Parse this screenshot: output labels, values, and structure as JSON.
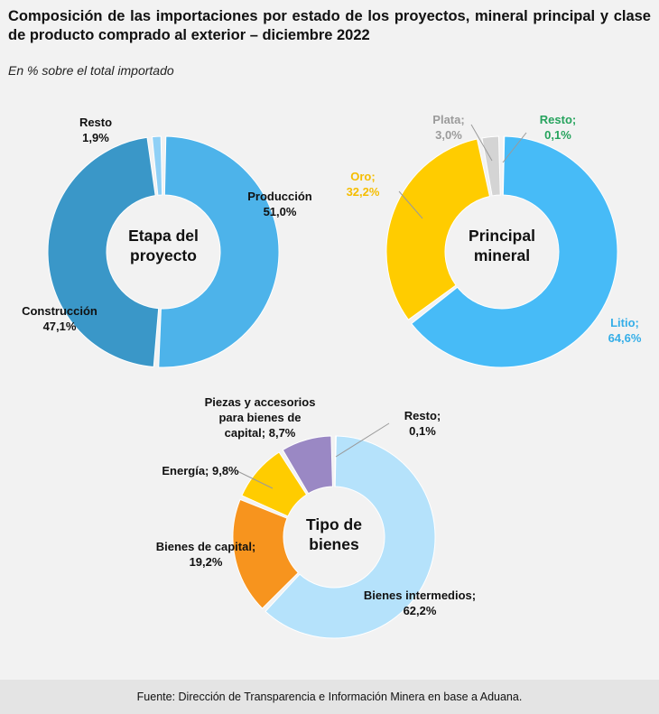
{
  "title": "Composición de las importaciones por estado de los proyectos, mineral principal y clase de producto comprado al exterior – diciembre 2022",
  "subtitle": "En % sobre el total importado",
  "footer": "Fuente: Dirección de Transparencia e Información Minera en base a Aduana.",
  "chart_data": [
    {
      "type": "pie",
      "center_label": [
        "Etapa del",
        "proyecto"
      ],
      "categories": [
        "Producción",
        "Construcción",
        "Resto"
      ],
      "values": [
        51.0,
        47.1,
        1.9
      ],
      "value_labels": [
        "51,0%",
        "47,1%",
        "1,9%"
      ],
      "colors": [
        "#4db3ea",
        "#3a97c8",
        "#8fd0f6"
      ],
      "label_colors": [
        "#111111",
        "#111111",
        "#111111"
      ]
    },
    {
      "type": "pie",
      "center_label": [
        "Principal",
        "mineral"
      ],
      "categories": [
        "Litio;",
        "Oro;",
        "Plata;",
        "Resto;"
      ],
      "values": [
        64.6,
        32.2,
        3.0,
        0.1
      ],
      "value_labels": [
        "64,6%",
        "32,2%",
        "3,0%",
        "0,1%"
      ],
      "colors": [
        "#47bbf7",
        "#ffcc00",
        "#d4d4d4",
        "#2aa866"
      ],
      "label_colors": [
        "#34aee8",
        "#f5bd00",
        "#9b9b9b",
        "#26a35d"
      ]
    },
    {
      "type": "pie",
      "center_label": [
        "Tipo de",
        "bienes"
      ],
      "categories": [
        "Bienes intermedios;",
        "Bienes de capital;",
        "Energía;",
        "Piezas y accesorios para bienes de capital;",
        "Resto;"
      ],
      "values": [
        62.2,
        19.2,
        9.8,
        8.7,
        0.1
      ],
      "value_labels": [
        "62,2%",
        "19,2%",
        "9,8%",
        "8,7%",
        "0,1%"
      ],
      "colors": [
        "#b5e2fb",
        "#f7941e",
        "#ffcc00",
        "#9a88c4",
        "#7a7a7a"
      ],
      "label_colors": [
        "#111111",
        "#111111",
        "#111111",
        "#111111",
        "#111111"
      ]
    }
  ]
}
